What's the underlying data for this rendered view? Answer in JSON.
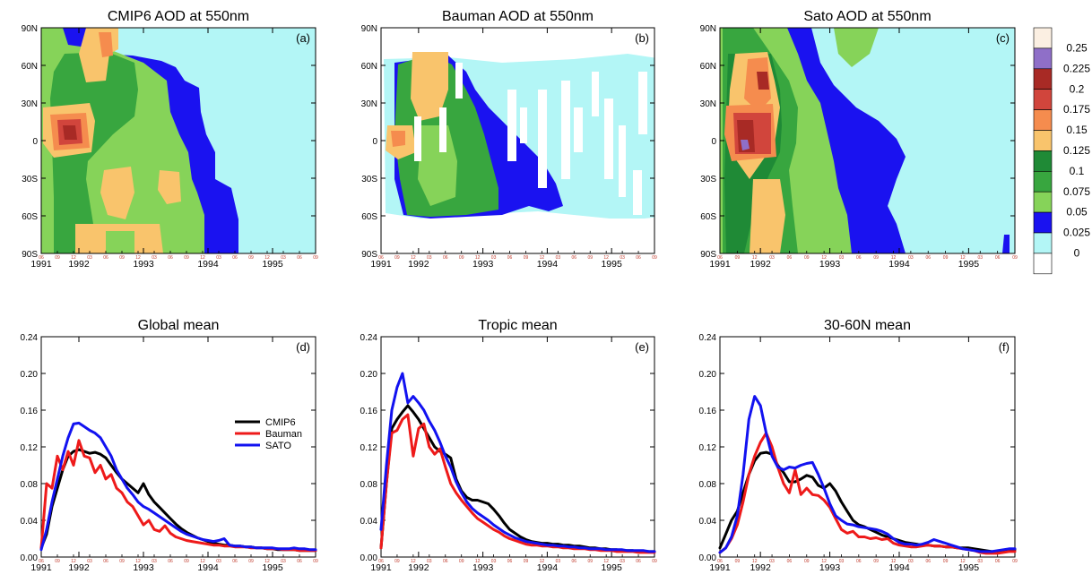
{
  "colorbar": {
    "levels": [
      "0.25",
      "0.225",
      "0.2",
      "0.175",
      "0.15",
      "0.125",
      "0.1",
      "0.075",
      "0.05",
      "0.025",
      "0"
    ],
    "colors": [
      "#fbefe2",
      "#8f6fc8",
      "#a82a25",
      "#d1453c",
      "#f58c4e",
      "#f9c46c",
      "#1f8a36",
      "#38a63f",
      "#86d359",
      "#1a12f0",
      "#b3f6f6",
      "#ffffff"
    ]
  },
  "month_ticks": [
    "06",
    "09",
    "12",
    "03",
    "06",
    "09",
    "12",
    "03",
    "06",
    "09",
    "12",
    "03",
    "06",
    "09",
    "12",
    "03",
    "06",
    "09"
  ],
  "chart_data": [
    {
      "id": "a",
      "type": "heatmap",
      "title": "CMIP6 AOD at 550nm",
      "panel_label": "(a)",
      "xlabel": "",
      "ylabel": "",
      "x_tick_labels": [
        "1991",
        "1992",
        "1993",
        "1994",
        "1995"
      ],
      "y_tick_labels": [
        "90N",
        "60N",
        "30N",
        "0",
        "30S",
        "60S",
        "90S"
      ],
      "x_start": "1991-06",
      "x_end": "1995-09"
    },
    {
      "id": "b",
      "type": "heatmap",
      "title": "Bauman AOD at 550nm",
      "panel_label": "(b)",
      "xlabel": "",
      "ylabel": "",
      "x_tick_labels": [
        "1991",
        "1992",
        "1993",
        "1994",
        "1995"
      ],
      "y_tick_labels": [
        "90N",
        "60N",
        "30N",
        "0",
        "30S",
        "60S",
        "90S"
      ],
      "x_start": "1991-06",
      "x_end": "1995-09"
    },
    {
      "id": "c",
      "type": "heatmap",
      "title": "Sato AOD at 550nm",
      "panel_label": "(c)",
      "xlabel": "",
      "ylabel": "",
      "x_tick_labels": [
        "1991",
        "1992",
        "1993",
        "1994",
        "1995"
      ],
      "y_tick_labels": [
        "90N",
        "60N",
        "30N",
        "0",
        "30S",
        "60S",
        "90S"
      ],
      "x_start": "1991-06",
      "x_end": "1995-09"
    },
    {
      "id": "d",
      "type": "line",
      "title": "Global mean",
      "panel_label": "(d)",
      "xlabel": "",
      "ylabel": "",
      "ylim": [
        0,
        0.24
      ],
      "y_tick_labels": [
        "0.00",
        "0.04",
        "0.08",
        "0.12",
        "0.16",
        "0.20",
        "0.24"
      ],
      "x_tick_labels": [
        "1991",
        "1992",
        "1993",
        "1994",
        "1995"
      ],
      "x_start": "1991-06",
      "x_end": "1995-09",
      "legend": {
        "entries": [
          "CMIP6",
          "Bauman",
          "SATO"
        ]
      },
      "series": [
        {
          "name": "CMIP6",
          "color": "#000000",
          "values": [
            0.01,
            0.025,
            0.055,
            0.075,
            0.095,
            0.11,
            0.115,
            0.117,
            0.115,
            0.113,
            0.114,
            0.112,
            0.108,
            0.1,
            0.092,
            0.085,
            0.08,
            0.075,
            0.07,
            0.08,
            0.068,
            0.06,
            0.054,
            0.048,
            0.042,
            0.036,
            0.031,
            0.027,
            0.024,
            0.021,
            0.019,
            0.017,
            0.015,
            0.014,
            0.013,
            0.013,
            0.012,
            0.012,
            0.011,
            0.011,
            0.01,
            0.01,
            0.009,
            0.009,
            0.008,
            0.008,
            0.008,
            0.008,
            0.007,
            0.007,
            0.007,
            0.007
          ]
        },
        {
          "name": "Bauman",
          "color": "#ee1a1a",
          "values": [
            0.01,
            0.08,
            0.075,
            0.11,
            0.095,
            0.115,
            0.1,
            0.127,
            0.11,
            0.108,
            0.092,
            0.1,
            0.085,
            0.09,
            0.075,
            0.07,
            0.06,
            0.055,
            0.045,
            0.035,
            0.04,
            0.03,
            0.028,
            0.034,
            0.026,
            0.022,
            0.02,
            0.018,
            0.017,
            0.016,
            0.015,
            0.014,
            0.013,
            0.013,
            0.012,
            0.012,
            0.011,
            0.011,
            0.011,
            0.01,
            0.01,
            0.01,
            0.009,
            0.009,
            0.009,
            0.008,
            0.008,
            0.008,
            0.007,
            0.007,
            0.007,
            0.007
          ]
        },
        {
          "name": "SATO",
          "color": "#1212f0",
          "values": [
            0.008,
            0.03,
            0.06,
            0.085,
            0.11,
            0.13,
            0.145,
            0.146,
            0.142,
            0.138,
            0.135,
            0.13,
            0.12,
            0.11,
            0.095,
            0.085,
            0.075,
            0.068,
            0.06,
            0.055,
            0.052,
            0.048,
            0.044,
            0.04,
            0.036,
            0.032,
            0.028,
            0.025,
            0.023,
            0.021,
            0.019,
            0.018,
            0.017,
            0.018,
            0.02,
            0.013,
            0.012,
            0.012,
            0.011,
            0.011,
            0.01,
            0.01,
            0.01,
            0.01,
            0.009,
            0.009,
            0.009,
            0.01,
            0.009,
            0.009,
            0.008,
            0.008
          ]
        }
      ]
    },
    {
      "id": "e",
      "type": "line",
      "title": "Tropic mean",
      "panel_label": "(e)",
      "xlabel": "",
      "ylabel": "",
      "ylim": [
        0,
        0.24
      ],
      "y_tick_labels": [
        "0.00",
        "0.04",
        "0.08",
        "0.12",
        "0.16",
        "0.20",
        "0.24"
      ],
      "x_tick_labels": [
        "1991",
        "1992",
        "1993",
        "1994",
        "1995"
      ],
      "x_start": "1991-06",
      "x_end": "1995-09",
      "series": [
        {
          "name": "CMIP6",
          "color": "#000000",
          "values": [
            0.01,
            0.08,
            0.14,
            0.15,
            0.158,
            0.165,
            0.158,
            0.15,
            0.14,
            0.13,
            0.12,
            0.115,
            0.112,
            0.108,
            0.085,
            0.072,
            0.065,
            0.062,
            0.062,
            0.06,
            0.058,
            0.052,
            0.045,
            0.037,
            0.03,
            0.026,
            0.022,
            0.019,
            0.017,
            0.016,
            0.015,
            0.015,
            0.014,
            0.014,
            0.013,
            0.013,
            0.012,
            0.012,
            0.011,
            0.01,
            0.01,
            0.009,
            0.009,
            0.008,
            0.008,
            0.007,
            0.007,
            0.007,
            0.006,
            0.006,
            0.006,
            0.006
          ]
        },
        {
          "name": "Bauman",
          "color": "#ee1a1a",
          "values": [
            0.01,
            0.08,
            0.135,
            0.138,
            0.15,
            0.155,
            0.11,
            0.14,
            0.145,
            0.12,
            0.112,
            0.118,
            0.098,
            0.08,
            0.07,
            0.062,
            0.055,
            0.048,
            0.042,
            0.038,
            0.034,
            0.03,
            0.027,
            0.023,
            0.02,
            0.018,
            0.016,
            0.014,
            0.013,
            0.013,
            0.012,
            0.012,
            0.011,
            0.011,
            0.01,
            0.01,
            0.009,
            0.009,
            0.009,
            0.008,
            0.008,
            0.007,
            0.007,
            0.007,
            0.006,
            0.006,
            0.006,
            0.006,
            0.005,
            0.005,
            0.005,
            0.005
          ]
        },
        {
          "name": "SATO",
          "color": "#1212f0",
          "values": [
            0.03,
            0.1,
            0.16,
            0.185,
            0.2,
            0.168,
            0.175,
            0.168,
            0.16,
            0.148,
            0.138,
            0.125,
            0.11,
            0.098,
            0.082,
            0.07,
            0.06,
            0.053,
            0.048,
            0.044,
            0.04,
            0.035,
            0.031,
            0.027,
            0.024,
            0.021,
            0.019,
            0.017,
            0.016,
            0.015,
            0.014,
            0.013,
            0.013,
            0.012,
            0.012,
            0.011,
            0.011,
            0.01,
            0.01,
            0.009,
            0.009,
            0.009,
            0.008,
            0.008,
            0.008,
            0.008,
            0.007,
            0.007,
            0.007,
            0.007,
            0.006,
            0.006
          ]
        }
      ]
    },
    {
      "id": "f",
      "type": "line",
      "title": "30-60N mean",
      "panel_label": "(f)",
      "xlabel": "",
      "ylabel": "",
      "ylim": [
        0,
        0.24
      ],
      "y_tick_labels": [
        "0.00",
        "0.04",
        "0.08",
        "0.12",
        "0.16",
        "0.20",
        "0.24"
      ],
      "x_tick_labels": [
        "1991",
        "1992",
        "1993",
        "1994",
        "1995"
      ],
      "x_start": "1991-06",
      "x_end": "1995-09",
      "series": [
        {
          "name": "CMIP6",
          "color": "#000000",
          "values": [
            0.01,
            0.025,
            0.04,
            0.05,
            0.07,
            0.09,
            0.105,
            0.113,
            0.114,
            0.112,
            0.1,
            0.092,
            0.082,
            0.082,
            0.085,
            0.089,
            0.087,
            0.078,
            0.075,
            0.08,
            0.072,
            0.06,
            0.05,
            0.04,
            0.035,
            0.033,
            0.03,
            0.027,
            0.024,
            0.022,
            0.02,
            0.018,
            0.016,
            0.015,
            0.014,
            0.013,
            0.013,
            0.012,
            0.012,
            0.011,
            0.011,
            0.01,
            0.01,
            0.01,
            0.009,
            0.008,
            0.007,
            0.006,
            0.006,
            0.007,
            0.008,
            0.008
          ]
        },
        {
          "name": "Bauman",
          "color": "#ee1a1a",
          "values": [
            0.005,
            0.01,
            0.02,
            0.035,
            0.06,
            0.09,
            0.11,
            0.125,
            0.135,
            0.12,
            0.098,
            0.08,
            0.07,
            0.095,
            0.068,
            0.075,
            0.068,
            0.067,
            0.062,
            0.054,
            0.042,
            0.03,
            0.026,
            0.028,
            0.022,
            0.022,
            0.02,
            0.021,
            0.019,
            0.02,
            0.015,
            0.013,
            0.012,
            0.011,
            0.011,
            0.012,
            0.013,
            0.012,
            0.012,
            0.011,
            0.011,
            0.01,
            0.009,
            0.008,
            0.007,
            0.005,
            0.004,
            0.004,
            0.004,
            0.005,
            0.006,
            0.006
          ]
        },
        {
          "name": "SATO",
          "color": "#1212f0",
          "values": [
            0.005,
            0.01,
            0.022,
            0.045,
            0.09,
            0.15,
            0.175,
            0.165,
            0.135,
            0.11,
            0.098,
            0.095,
            0.098,
            0.097,
            0.1,
            0.102,
            0.103,
            0.09,
            0.075,
            0.058,
            0.045,
            0.04,
            0.036,
            0.035,
            0.033,
            0.032,
            0.031,
            0.03,
            0.028,
            0.025,
            0.02,
            0.016,
            0.014,
            0.014,
            0.013,
            0.014,
            0.016,
            0.019,
            0.017,
            0.015,
            0.013,
            0.011,
            0.009,
            0.008,
            0.007,
            0.006,
            0.006,
            0.006,
            0.007,
            0.008,
            0.009,
            0.009
          ]
        }
      ]
    }
  ]
}
